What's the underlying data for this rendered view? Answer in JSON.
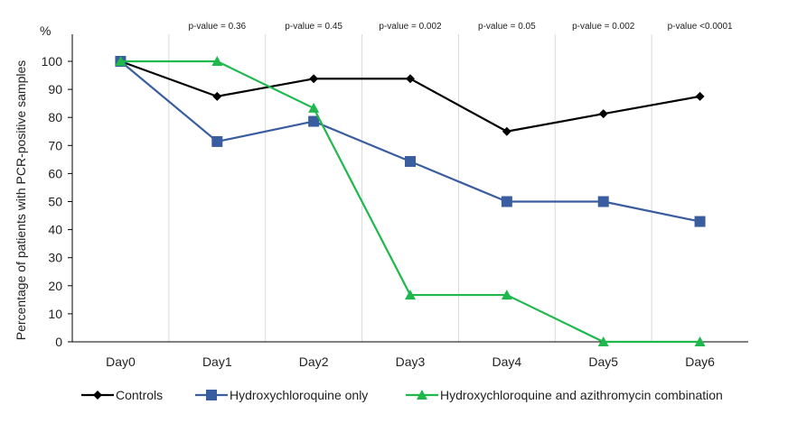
{
  "chart_data": {
    "type": "line",
    "title": "",
    "xlabel": "",
    "ylabel": "Percentage of patients with PCR-positive samples",
    "y_unit": "%",
    "ylim": [
      0,
      100
    ],
    "yticks": [
      0,
      10,
      20,
      30,
      40,
      50,
      60,
      70,
      80,
      90,
      100
    ],
    "categories": [
      "Day0",
      "Day1",
      "Day2",
      "Day3",
      "Day4",
      "Day5",
      "Day6"
    ],
    "pvalue_annotations": [
      {
        "category": "Day1",
        "text": "p-value = 0.36"
      },
      {
        "category": "Day2",
        "text": "p-value = 0.45"
      },
      {
        "category": "Day3",
        "text": "p-value = 0.002"
      },
      {
        "category": "Day4",
        "text": "p-value = 0.05"
      },
      {
        "category": "Day5",
        "text": "p-value = 0.002"
      },
      {
        "category": "Day6",
        "text": "p-value <0.0001"
      }
    ],
    "grid": "vertical",
    "legend_position": "bottom",
    "series": [
      {
        "name": "Controls",
        "color": "#000000",
        "marker": "diamond",
        "values": [
          100,
          87.5,
          93.8,
          93.8,
          75,
          81.3,
          87.5
        ]
      },
      {
        "name": "Hydroxychloroquine only",
        "color": "#3a5da0",
        "marker": "square",
        "values": [
          100,
          71.4,
          78.6,
          64.3,
          50,
          50,
          42.9
        ]
      },
      {
        "name": "Hydroxychloroquine and azithromycin combination",
        "color": "#1fb84d",
        "marker": "triangle",
        "values": [
          100,
          100,
          83.3,
          16.7,
          16.7,
          0,
          0
        ]
      }
    ]
  }
}
